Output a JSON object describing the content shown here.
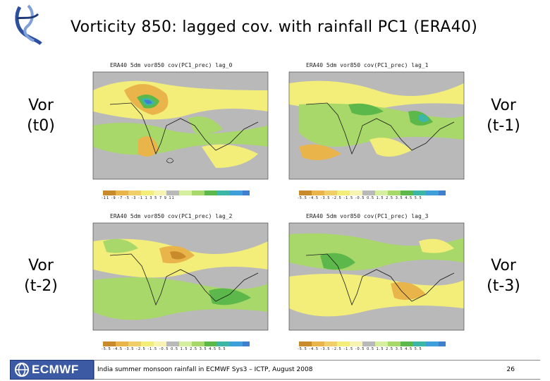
{
  "slide": {
    "title": "Vorticity 850: lagged cov. with rainfall PC1 (ERA40)"
  },
  "labels": {
    "top_left": "Vor\n(t0)",
    "top_right": "Vor\n(t-1)",
    "bottom_left": "Vor\n(t-2)",
    "bottom_right": "Vor\n(t-3)"
  },
  "panels": [
    {
      "header": "ERA40   5dm vor850   cov(PC1_prec)  lag_0",
      "colorbar_ticks": "-11 -9 -7 -5 -3 -1 1 3 5 7 9 11"
    },
    {
      "header": "ERA40   5dm vor850   cov(PC1_prec)  lag_1",
      "colorbar_ticks": "-5.5 -4.5 -3.5 -2.5 -1.5 -0.5 0.5 1.5 2.5 3.5 4.5 5.5"
    },
    {
      "header": "ERA40   5dm vor850   cov(PC1_prec)  lag_2",
      "colorbar_ticks": "-5.5 -4.5 -3.5 -2.5 -1.5 -0.5 0.5 1.5 2.5 3.5 4.5 5.5"
    },
    {
      "header": "ERA40   5dm vor850   cov(PC1_prec)  lag_3",
      "colorbar_ticks": "-5.5 -4.5 -3.5 -2.5 -1.5 -0.5 0.5 1.5 2.5 3.5 4.5 5.5"
    }
  ],
  "footer": {
    "logo_text": "ECMWF",
    "caption": "India summer monsoon rainfall in ECMWF Sys3 – ICTP, August 2008",
    "page_number": "26"
  },
  "colors": {
    "map_grey": "#b9b9b9",
    "yellow": "#f3ee7a",
    "light_green": "#a9d86a",
    "green": "#5cb84a",
    "teal": "#3db7a5",
    "orange": "#e9b54a",
    "dark_orange": "#c88a2a",
    "blue": "#3f7fd0",
    "coast": "#1a1a1a"
  }
}
